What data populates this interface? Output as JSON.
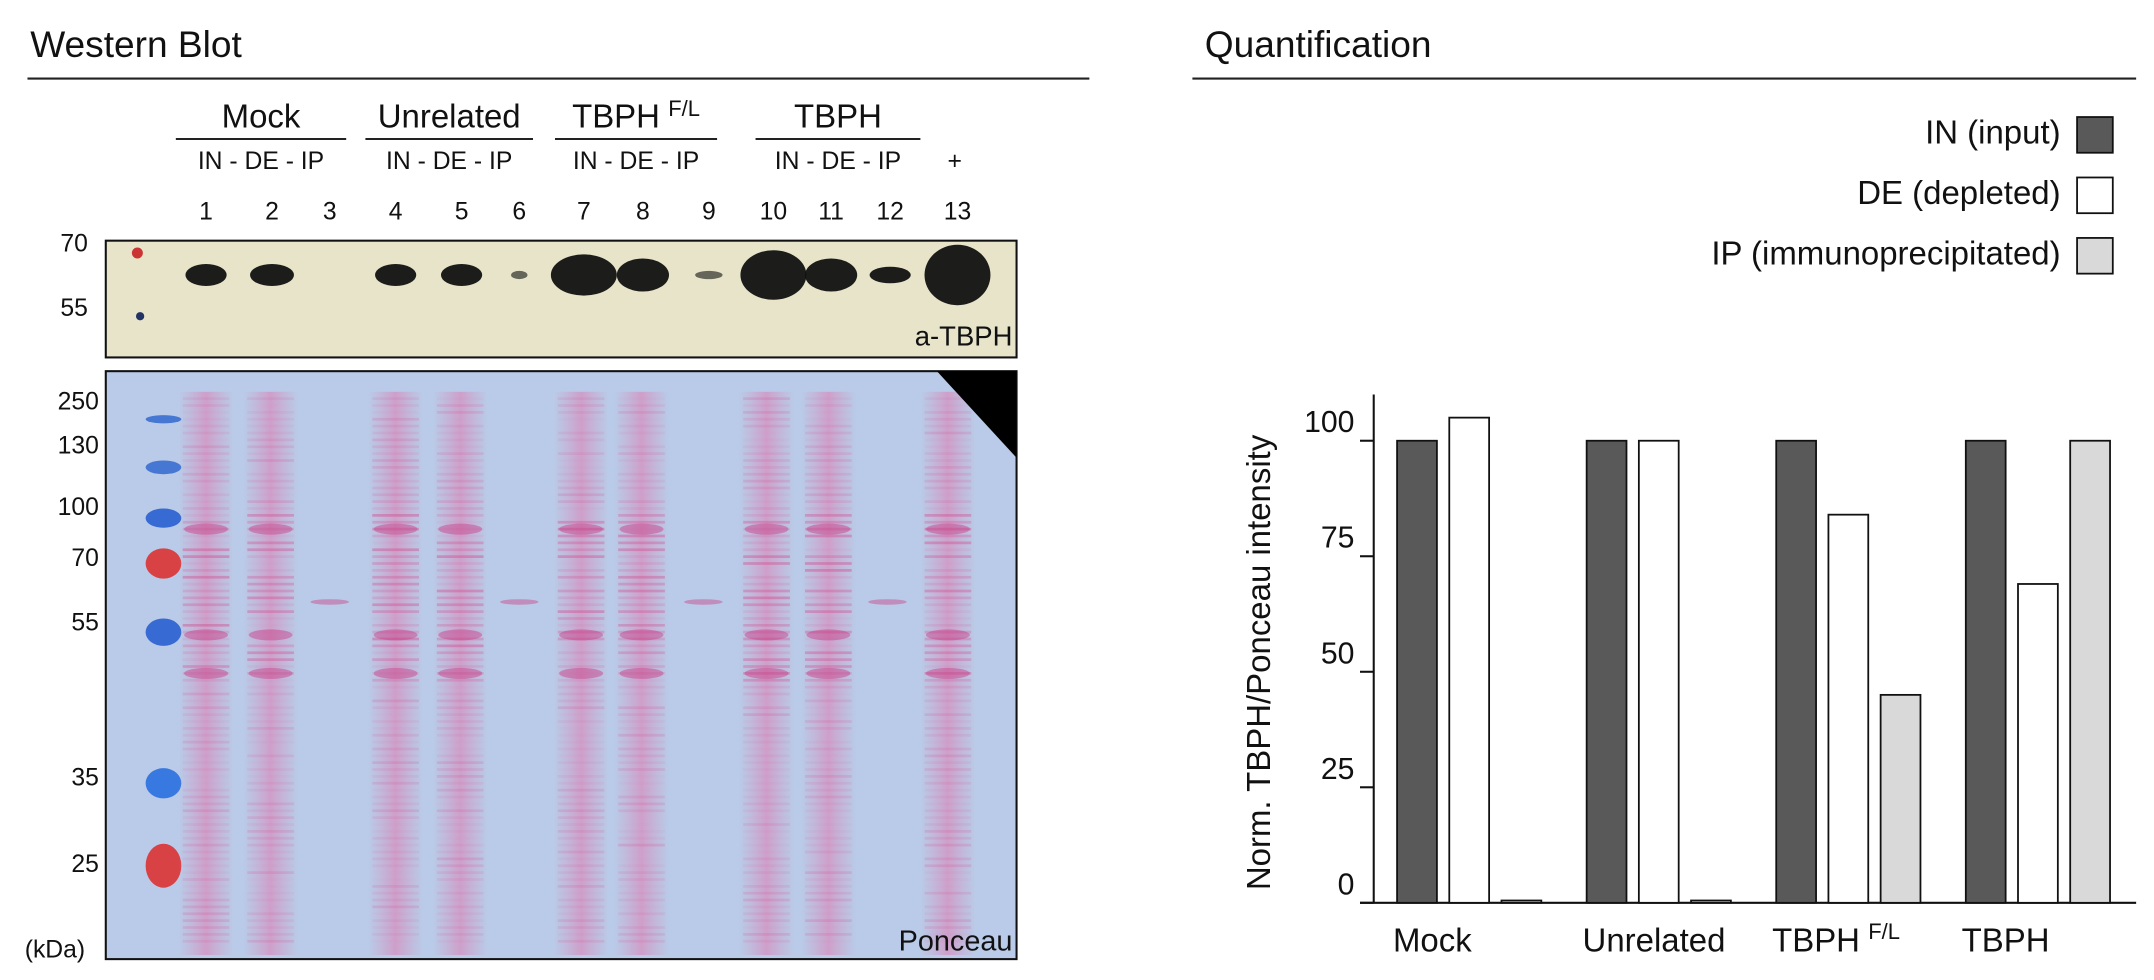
{
  "western_blot": {
    "title": "Western Blot",
    "groups": [
      {
        "label": "Mock",
        "lanes": "IN - DE - IP"
      },
      {
        "label": "Unrelated",
        "lanes": "IN - DE - IP"
      },
      {
        "label": "TBPH",
        "superscript": "F/L",
        "lanes": "IN - DE - IP"
      },
      {
        "label": "TBPH",
        "lanes": "IN - DE - IP"
      }
    ],
    "control_lane": "+",
    "lane_numbers": [
      "1",
      "2",
      "3",
      "4",
      "5",
      "6",
      "7",
      "8",
      "9",
      "10",
      "11",
      "12",
      "13"
    ],
    "top_markers": [
      "70",
      "55"
    ],
    "top_label": "a-TBPH",
    "bottom_markers": [
      "250",
      "130",
      "100",
      "70",
      "55",
      "35",
      "25"
    ],
    "bottom_label": "Ponceau",
    "unit": "(kDa)"
  },
  "chart_data": {
    "type": "bar",
    "title": "Quantification",
    "ylabel": "Norm. TBPH/Ponceau intensity",
    "categories": [
      "Mock",
      "Unrelated",
      "TBPH",
      "TBPH"
    ],
    "category_superscripts": [
      null,
      null,
      "F/L",
      null
    ],
    "series": [
      {
        "name": "IN (input)",
        "color": "#595959",
        "values": [
          100,
          100,
          100,
          100
        ]
      },
      {
        "name": "DE (depleted)",
        "color": "#ffffff",
        "values": [
          105,
          100,
          84,
          69
        ]
      },
      {
        "name": "IP (immunoprecipitated)",
        "color": "#d9d9d9",
        "values": [
          0.5,
          0.5,
          45,
          100
        ]
      }
    ],
    "ylim": [
      0,
      110
    ],
    "yticks": [
      0,
      25,
      50,
      75,
      100
    ]
  }
}
